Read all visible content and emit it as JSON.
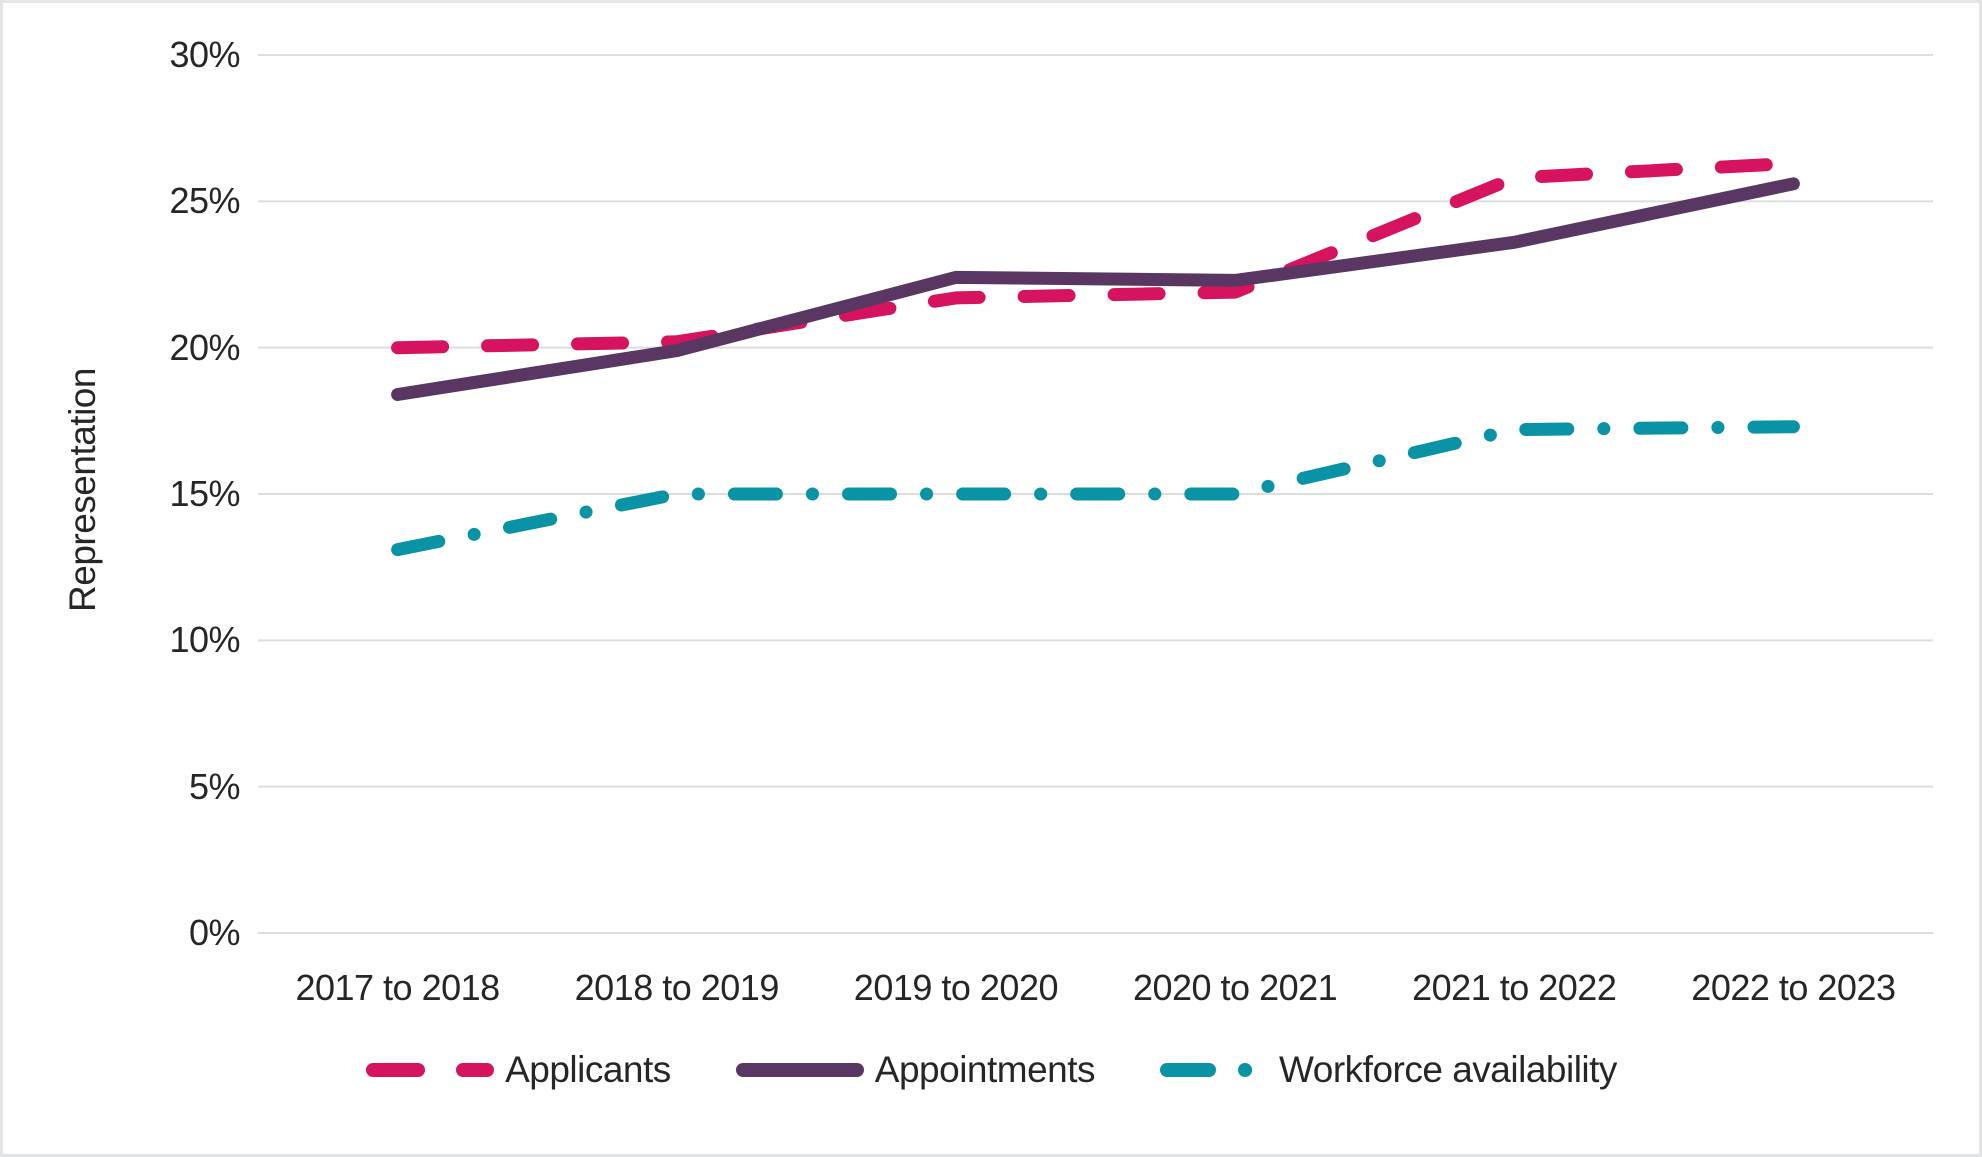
{
  "chart_data": {
    "type": "line",
    "title": "",
    "xlabel": "",
    "ylabel": "Representation",
    "categories": [
      "2017 to 2018",
      "2018 to 2019",
      "2019 to 2020",
      "2020 to 2021",
      "2021 to 2022",
      "2022 to 2023"
    ],
    "series": [
      {
        "name": "Applicants",
        "style": "dashed",
        "color": "#D5135F",
        "values": [
          20.0,
          20.2,
          21.7,
          21.9,
          25.8,
          26.3
        ]
      },
      {
        "name": "Appointments",
        "style": "solid",
        "color": "#5A3763",
        "values": [
          18.4,
          19.9,
          22.4,
          22.3,
          23.6,
          25.6
        ]
      },
      {
        "name": "Workforce availability",
        "style": "dashdot",
        "color": "#0A93A5",
        "values": [
          13.1,
          15.0,
          15.0,
          15.0,
          17.2,
          17.3
        ]
      }
    ],
    "ylim": [
      0,
      30
    ],
    "ytick_step": 5,
    "ytick_labels": [
      "0%",
      "5%",
      "10%",
      "15%",
      "20%",
      "25%",
      "30%"
    ],
    "grid": "horizontal",
    "legend_position": "bottom"
  },
  "colors": {
    "gridline": "#DDDDDD",
    "text": "#262626",
    "background": "#FFFFFF",
    "frame_border": "#E2E4E6"
  }
}
